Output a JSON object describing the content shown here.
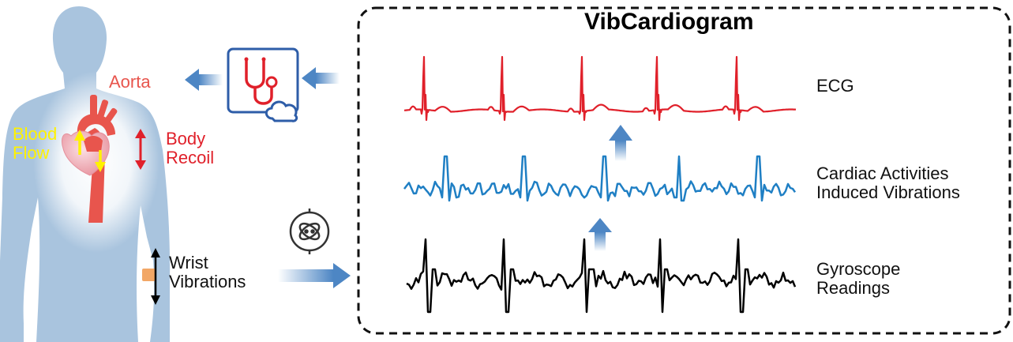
{
  "title": "VibCardiogram",
  "body_labels": {
    "aorta": "Aorta",
    "blood_flow_1": "Blood",
    "blood_flow_2": "Flow",
    "body_recoil_1": "Body",
    "body_recoil_2": "Recoil",
    "wrist_1": "Wrist",
    "wrist_2": "Vibrations"
  },
  "signal_labels": {
    "ecg": "ECG",
    "vib_1": "Cardiac Activities",
    "vib_2": "Induced Vibrations",
    "gyro_1": "Gyroscope",
    "gyro_2": "Readings"
  },
  "colors": {
    "body": "#a9c4de",
    "aorta": "#e8554d",
    "heart": "#f2b6bd",
    "blood_flow": "#fff200",
    "body_recoil": "#e0202a",
    "ecg": "#e0202a",
    "vibration": "#1f7fc4",
    "gyroscope": "#000000",
    "arrow": "#4d86c4",
    "icon": "#2e5da8"
  },
  "icons": [
    "stethoscope-cloud-icon",
    "gyroscope-icon"
  ]
}
